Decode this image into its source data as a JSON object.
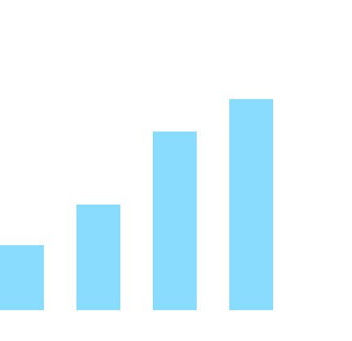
{
  "chart_data": {
    "type": "bar",
    "categories": [
      "",
      "",
      "",
      ""
    ],
    "values": [
      80,
      130,
      220,
      260
    ],
    "title": "",
    "xlabel": "",
    "ylabel": "",
    "ylim": [
      0,
      382
    ],
    "grid": false,
    "legend": "none",
    "colors": {
      "bar": "#8adcff",
      "background": "#ffffff"
    }
  }
}
